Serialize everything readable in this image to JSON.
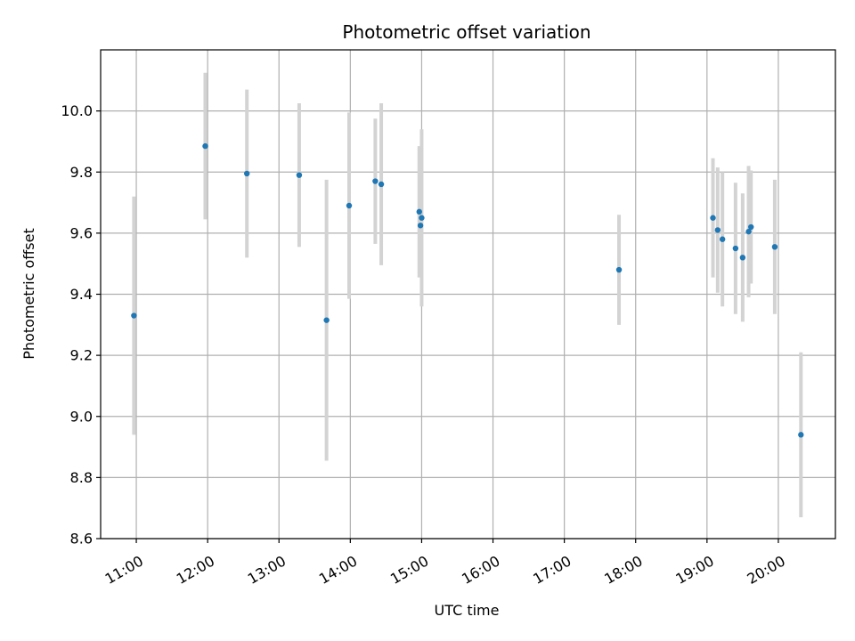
{
  "chart_data": {
    "type": "scatter",
    "title": "Photometric offset variation",
    "xlabel": "UTC time",
    "ylabel": "Photometric offset",
    "xlim": [
      "10:30",
      "20:48"
    ],
    "ylim": [
      8.6,
      10.2
    ],
    "grid": true,
    "x_ticks": [
      "11:00",
      "12:00",
      "13:00",
      "14:00",
      "15:00",
      "16:00",
      "17:00",
      "18:00",
      "19:00",
      "20:00"
    ],
    "y_ticks": [
      8.6,
      8.8,
      9.0,
      9.2,
      9.4,
      9.6,
      9.8,
      10.0
    ],
    "y_tick_labels": [
      "8.6",
      "8.8",
      "9.0",
      "9.2",
      "9.4",
      "9.6",
      "9.8",
      "10.0"
    ],
    "colors": {
      "point": "#1f77b4",
      "errorbar": "#d3d3d3",
      "grid": "#b0b0b0"
    },
    "points": [
      {
        "x": "10:58",
        "y": 9.33,
        "err": 0.39
      },
      {
        "x": "11:58",
        "y": 9.885,
        "err": 0.24
      },
      {
        "x": "12:33",
        "y": 9.795,
        "err": 0.275
      },
      {
        "x": "13:17",
        "y": 9.79,
        "err": 0.235
      },
      {
        "x": "13:40",
        "y": 9.315,
        "err": 0.46
      },
      {
        "x": "13:59",
        "y": 9.69,
        "err": 0.305
      },
      {
        "x": "14:21",
        "y": 9.77,
        "err": 0.205
      },
      {
        "x": "14:26",
        "y": 9.76,
        "err": 0.265
      },
      {
        "x": "14:58",
        "y": 9.67,
        "err": 0.215
      },
      {
        "x": "14:59",
        "y": 9.625,
        "err": 0.0
      },
      {
        "x": "15:00",
        "y": 9.65,
        "err": 0.29
      },
      {
        "x": "17:46",
        "y": 9.48,
        "err": 0.18
      },
      {
        "x": "19:05",
        "y": 9.65,
        "err": 0.195
      },
      {
        "x": "19:09",
        "y": 9.61,
        "err": 0.205
      },
      {
        "x": "19:13",
        "y": 9.58,
        "err": 0.22
      },
      {
        "x": "19:24",
        "y": 9.55,
        "err": 0.215
      },
      {
        "x": "19:30",
        "y": 9.52,
        "err": 0.21
      },
      {
        "x": "19:35",
        "y": 9.605,
        "err": 0.215
      },
      {
        "x": "19:37",
        "y": 9.62,
        "err": 0.185
      },
      {
        "x": "19:57",
        "y": 9.555,
        "err": 0.22
      },
      {
        "x": "20:19",
        "y": 8.94,
        "err": 0.27
      }
    ]
  }
}
